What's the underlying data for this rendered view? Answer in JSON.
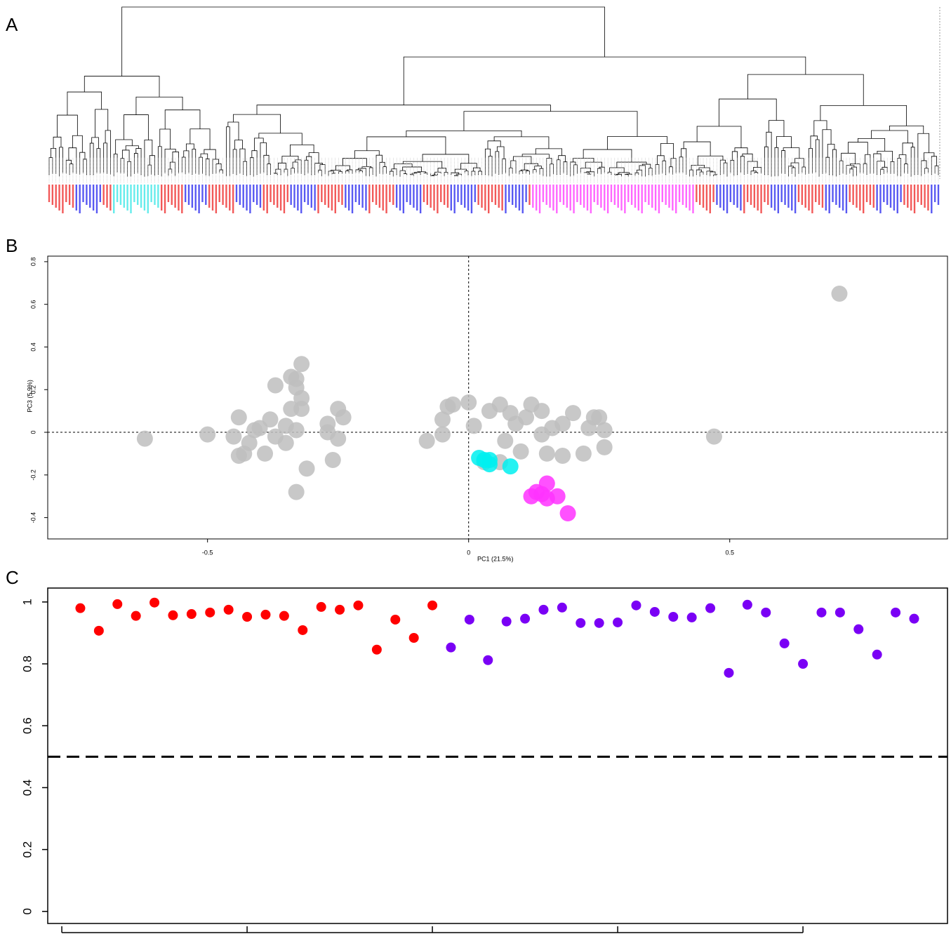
{
  "panels": [
    "A",
    "B",
    "C"
  ],
  "chart_data": [
    {
      "type": "scatter",
      "xlabel": "PC1 (21.5%)",
      "ylabel": "PC3 (5.9%)",
      "xlim": [
        -0.806,
        0.917
      ],
      "ylim": [
        -0.5,
        0.826
      ],
      "xticks": [
        -0.5,
        0.0,
        0.5
      ],
      "yticks": [
        -0.4,
        -0.2,
        0.0,
        0.2,
        0.4,
        0.6,
        0.8
      ],
      "hline": 0,
      "vline": 0,
      "series": [
        {
          "color": "#bebebe",
          "x": [
            -0.62,
            -0.5,
            -0.44,
            -0.32,
            -0.34,
            -0.33,
            -0.37,
            -0.33,
            -0.32,
            -0.34,
            -0.32,
            -0.38,
            -0.35,
            -0.37,
            -0.4,
            -0.41,
            -0.45,
            -0.43,
            -0.39,
            -0.35,
            -0.33,
            -0.27,
            -0.27,
            -0.25,
            -0.24,
            -0.25,
            -0.26,
            -0.31,
            -0.33,
            -0.42,
            -0.44,
            -0.08,
            -0.05,
            -0.05,
            -0.04,
            -0.03,
            0.0,
            0.01,
            0.04,
            0.06,
            0.07,
            0.06,
            0.1,
            0.12,
            0.09,
            0.11,
            0.14,
            0.15,
            0.18,
            0.2,
            0.18,
            0.23,
            0.24,
            0.25,
            0.26,
            0.26,
            0.22,
            0.16,
            0.14,
            0.08,
            0.47,
            0.71,
            0.03
          ],
          "values": [
            -0.03,
            -0.01,
            0.07,
            0.32,
            0.26,
            0.25,
            0.22,
            0.21,
            0.16,
            0.11,
            0.11,
            0.06,
            0.03,
            -0.02,
            0.02,
            0.01,
            -0.02,
            -0.1,
            -0.1,
            -0.05,
            0.01,
            0.04,
            0.0,
            0.11,
            0.07,
            -0.03,
            -0.13,
            -0.17,
            -0.28,
            -0.05,
            -0.11,
            -0.04,
            -0.01,
            0.06,
            0.12,
            0.13,
            0.14,
            0.03,
            0.1,
            0.13,
            -0.04,
            -0.14,
            -0.09,
            0.13,
            0.04,
            0.07,
            -0.01,
            -0.1,
            -0.11,
            0.09,
            0.04,
            0.02,
            0.07,
            0.07,
            0.01,
            -0.07,
            -0.1,
            0.02,
            0.1,
            0.09,
            -0.02,
            0.65,
            -0.14
          ]
        },
        {
          "color": "#00f0f0",
          "x": [
            0.02,
            0.03,
            0.04,
            0.04,
            0.08
          ],
          "values": [
            -0.12,
            -0.13,
            -0.15,
            -0.13,
            -0.16
          ]
        },
        {
          "color": "#ff33ff",
          "x": [
            0.12,
            0.13,
            0.15,
            0.15,
            0.17,
            0.19,
            0.14
          ],
          "values": [
            -0.3,
            -0.28,
            -0.24,
            -0.31,
            -0.3,
            -0.38,
            -0.29
          ]
        }
      ]
    },
    {
      "type": "scatter",
      "xlim": [
        -0.76,
        47.8
      ],
      "ylim": [
        -0.039,
        1.045
      ],
      "xticks": [
        0,
        10,
        20,
        30,
        40
      ],
      "yticks": [
        0.0,
        0.2,
        0.4,
        0.6,
        0.8,
        1.0
      ],
      "hline": 0.5,
      "series": [
        {
          "color": "#ff0000",
          "x": [
            1,
            2,
            3,
            4,
            5,
            6,
            7,
            8,
            9,
            10,
            11,
            12,
            13,
            14,
            15,
            16,
            17,
            18,
            19,
            20
          ],
          "values": [
            0.98,
            0.907,
            0.993,
            0.955,
            0.998,
            0.957,
            0.961,
            0.966,
            0.975,
            0.952,
            0.959,
            0.955,
            0.909,
            0.984,
            0.975,
            0.989,
            0.846,
            0.943,
            0.884,
            0.989
          ]
        },
        {
          "color": "#7a00f5",
          "x": [
            21,
            22,
            23,
            24,
            25,
            26,
            27,
            28,
            29,
            30,
            31,
            32,
            33,
            34,
            35,
            36,
            37,
            38,
            39,
            40,
            41,
            42,
            43,
            44,
            45,
            46
          ],
          "values": [
            0.853,
            0.943,
            0.812,
            0.937,
            0.946,
            0.975,
            0.982,
            0.932,
            0.932,
            0.934,
            0.989,
            0.968,
            0.952,
            0.95,
            0.98,
            0.771,
            0.991,
            0.966,
            0.866,
            0.8,
            0.966,
            0.966,
            0.912,
            0.83,
            0.966,
            0.946
          ]
        }
      ]
    }
  ]
}
